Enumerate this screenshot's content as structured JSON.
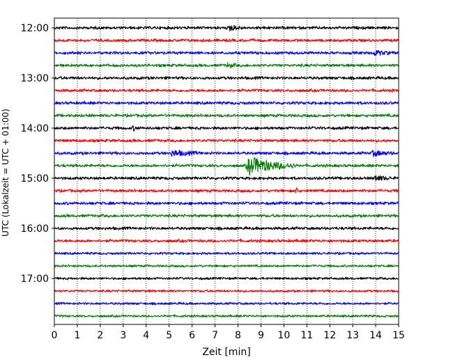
{
  "chart_data": {
    "type": "line",
    "xlabel": "Zeit  [min]",
    "ylabel": "UTC (Lokalzeit = UTC + 01:00)",
    "xlim": [
      0,
      15
    ],
    "x_ticks": [
      0,
      1,
      2,
      3,
      4,
      5,
      6,
      7,
      8,
      9,
      10,
      11,
      12,
      13,
      14,
      15
    ],
    "x_tick_labels": [
      "0",
      "1",
      "2",
      "3",
      "4",
      "5",
      "6",
      "7",
      "8",
      "9",
      "10",
      "11",
      "12",
      "13",
      "14",
      "15"
    ],
    "grid": "vertical dotted",
    "y_tick_labels": [
      "12:00",
      "13:00",
      "14:00",
      "15:00",
      "16:00",
      "17:00"
    ],
    "y_tick_rows": [
      0,
      4,
      8,
      12,
      16,
      20
    ],
    "color_cycle": [
      "#000000",
      "#ff0000",
      "#0000ff",
      "#008000"
    ],
    "series": [
      {
        "start": "12:00",
        "color": "#000000",
        "amplitude": 2.5,
        "events": [
          {
            "t": 7.6,
            "amp": 4,
            "dur": 0.6
          }
        ]
      },
      {
        "start": "12:15",
        "color": "#ff0000",
        "amplitude": 2.5,
        "events": []
      },
      {
        "start": "12:30",
        "color": "#0000ff",
        "amplitude": 2.5,
        "events": [
          {
            "t": 13.9,
            "amp": 3.5,
            "dur": 0.8
          }
        ]
      },
      {
        "start": "12:45",
        "color": "#008000",
        "amplitude": 2.5,
        "events": [
          {
            "t": 7.5,
            "amp": 3,
            "dur": 0.5
          }
        ]
      },
      {
        "start": "13:00",
        "color": "#000000",
        "amplitude": 2.5,
        "events": []
      },
      {
        "start": "13:15",
        "color": "#ff0000",
        "amplitude": 2.5,
        "events": []
      },
      {
        "start": "13:30",
        "color": "#0000ff",
        "amplitude": 2.5,
        "events": []
      },
      {
        "start": "13:45",
        "color": "#008000",
        "amplitude": 2.5,
        "events": []
      },
      {
        "start": "14:00",
        "color": "#000000",
        "amplitude": 2.5,
        "events": [
          {
            "t": 3.4,
            "amp": 3,
            "dur": 0.3
          }
        ]
      },
      {
        "start": "14:15",
        "color": "#ff0000",
        "amplitude": 2.5,
        "events": []
      },
      {
        "start": "14:30",
        "color": "#0000ff",
        "amplitude": 2.5,
        "events": [
          {
            "t": 5.0,
            "amp": 3.5,
            "dur": 1.5
          },
          {
            "t": 13.8,
            "amp": 3.5,
            "dur": 1.0
          }
        ]
      },
      {
        "start": "14:45",
        "color": "#008000",
        "amplitude": 2.5,
        "events": [
          {
            "t": 8.3,
            "amp": 12,
            "dur": 2.2
          }
        ]
      },
      {
        "start": "15:00",
        "color": "#000000",
        "amplitude": 2.5,
        "events": [
          {
            "t": 13.9,
            "amp": 3.5,
            "dur": 0.8
          }
        ]
      },
      {
        "start": "15:15",
        "color": "#ff0000",
        "amplitude": 2.5,
        "events": [
          {
            "t": 10.5,
            "amp": 6,
            "dur": 0.15
          }
        ]
      },
      {
        "start": "15:30",
        "color": "#0000ff",
        "amplitude": 2.5,
        "events": []
      },
      {
        "start": "15:45",
        "color": "#008000",
        "amplitude": 2.5,
        "events": []
      },
      {
        "start": "16:00",
        "color": "#000000",
        "amplitude": 2.5,
        "events": []
      },
      {
        "start": "16:15",
        "color": "#ff0000",
        "amplitude": 2.5,
        "events": []
      },
      {
        "start": "16:30",
        "color": "#0000ff",
        "amplitude": 2.0,
        "events": []
      },
      {
        "start": "16:45",
        "color": "#008000",
        "amplitude": 2.0,
        "events": []
      },
      {
        "start": "17:00",
        "color": "#000000",
        "amplitude": 2.0,
        "events": []
      },
      {
        "start": "17:15",
        "color": "#ff0000",
        "amplitude": 2.0,
        "events": []
      },
      {
        "start": "17:30",
        "color": "#0000ff",
        "amplitude": 2.0,
        "events": []
      },
      {
        "start": "17:45",
        "color": "#008000",
        "amplitude": 2.0,
        "events": []
      }
    ]
  }
}
